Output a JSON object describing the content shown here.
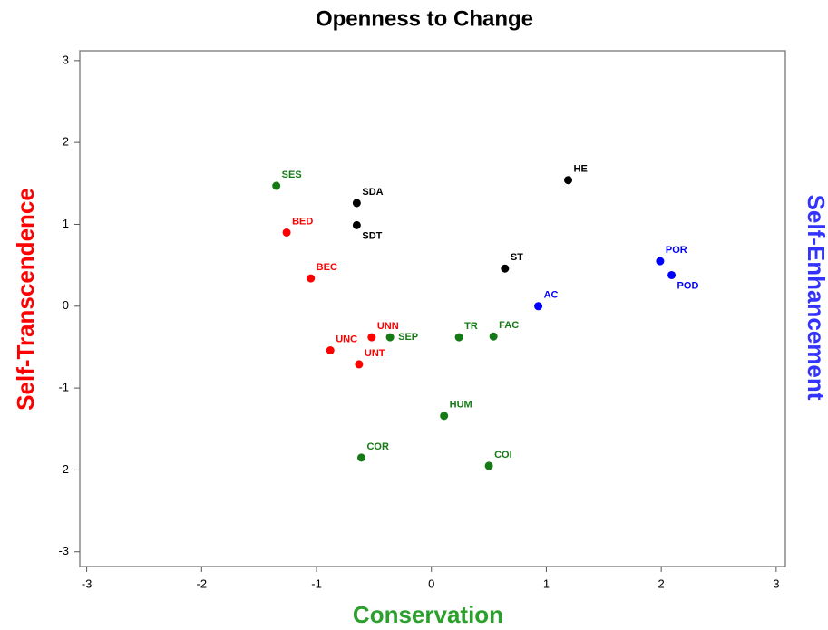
{
  "chart_data": {
    "type": "scatter",
    "title": "Openness to Change",
    "xlabel": "Conservation",
    "xlabel_color": "#2ca02c",
    "ylabel": "Self-Transcendence",
    "ylabel_color": "#ff0000",
    "y2label": "Self-Enhancement",
    "y2label_color": "#3333ff",
    "xlim": [
      -3.06,
      3.08
    ],
    "ylim": [
      -3.18,
      3.12
    ],
    "xticks": [
      -3,
      -2,
      -1,
      0,
      1,
      2,
      3
    ],
    "yticks": [
      -3,
      -2,
      -1,
      0,
      1,
      2,
      3
    ],
    "series": [
      {
        "color": "#ff0000",
        "labels": [
          "BED",
          "BEC",
          "UNN",
          "UNC",
          "UNT"
        ],
        "x": [
          -1.26,
          -1.05,
          -0.52,
          -0.88,
          -0.63
        ],
        "y": [
          0.9,
          0.34,
          -0.38,
          -0.54,
          -0.71
        ]
      },
      {
        "color": "#157a15",
        "labels": [
          "SES",
          "SEP",
          "TR",
          "FAC",
          "HUM",
          "COR",
          "COI"
        ],
        "x": [
          -1.35,
          -0.36,
          0.24,
          0.54,
          0.11,
          -0.61,
          0.5
        ],
        "y": [
          1.47,
          -0.38,
          -0.38,
          -0.37,
          -1.34,
          -1.85,
          -1.95
        ]
      },
      {
        "color": "#000000",
        "labels": [
          "SDA",
          "SDT",
          "HE",
          "ST"
        ],
        "x": [
          -0.65,
          -0.65,
          1.19,
          0.64
        ],
        "y": [
          1.26,
          0.99,
          1.54,
          0.46
        ]
      },
      {
        "color": "#0000ff",
        "labels": [
          "POR",
          "POD",
          "AC"
        ],
        "x": [
          1.99,
          2.09,
          0.93
        ],
        "y": [
          0.55,
          0.38,
          0.0
        ]
      }
    ]
  }
}
